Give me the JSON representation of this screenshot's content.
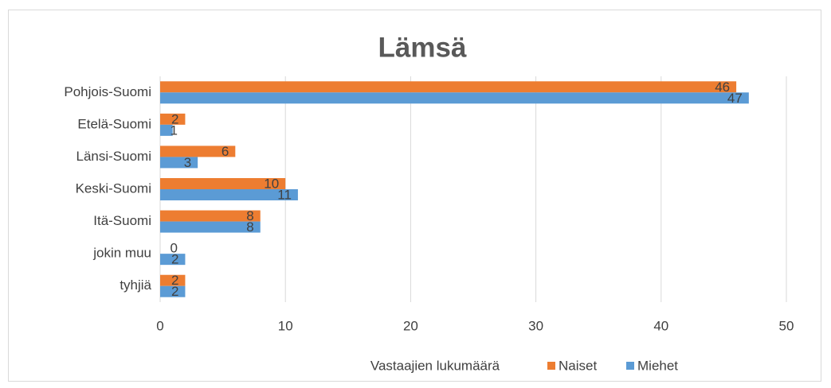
{
  "chart_data": {
    "type": "hbar",
    "title": "Lämsä",
    "categories": [
      "Pohjois-Suomi",
      "Etelä-Suomi",
      "Länsi-Suomi",
      "Keski-Suomi",
      "Itä-Suomi",
      "jokin muu",
      "tyhjiä"
    ],
    "series": [
      {
        "name": "Naiset",
        "color": "#ED7D31",
        "values": [
          46,
          2,
          6,
          10,
          8,
          0,
          2
        ]
      },
      {
        "name": "Miehet",
        "color": "#5B9BD5",
        "values": [
          47,
          1,
          3,
          11,
          8,
          2,
          2
        ]
      }
    ],
    "xlabel": "Vastaajien lukumäärä",
    "xlim": [
      0,
      50
    ],
    "xticks": [
      0,
      10,
      20,
      30,
      40,
      50
    ],
    "grid": true
  }
}
